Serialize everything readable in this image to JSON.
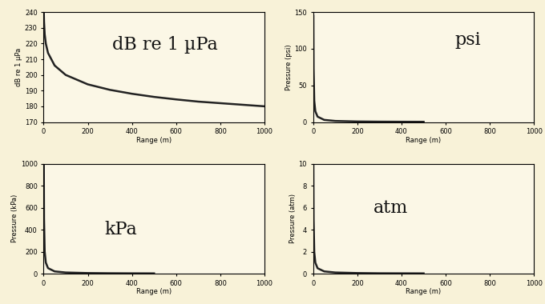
{
  "chart_data": [
    {
      "type": "line",
      "annotation": "dB re 1 µPa",
      "x_label": "Range (m)",
      "y_label": "dB re 1 µPa",
      "x": [
        1,
        2,
        5,
        10,
        20,
        50,
        100,
        200,
        300,
        400,
        500,
        600,
        700,
        800,
        900,
        1000
      ],
      "values": [
        240,
        234,
        226,
        220,
        214,
        206,
        200,
        194,
        190.5,
        188,
        186,
        184.4,
        183,
        182,
        181,
        180
      ],
      "xlim": [
        0,
        1000
      ],
      "ylim": [
        170,
        240
      ],
      "xticks": [
        0,
        200,
        400,
        600,
        800,
        1000
      ],
      "yticks": [
        170,
        180,
        190,
        200,
        210,
        220,
        230,
        240
      ],
      "color": "#222222"
    },
    {
      "type": "line",
      "annotation": "psi",
      "x_label": "Range (m)",
      "y_label": "Pressure (psi)",
      "x": [
        1,
        2,
        5,
        10,
        20,
        50,
        100,
        200,
        300,
        400,
        500
      ],
      "values": [
        145,
        72.5,
        29,
        14.5,
        7.3,
        2.9,
        1.45,
        0.73,
        0.48,
        0.36,
        0.29
      ],
      "xlim": [
        0,
        1000
      ],
      "ylim": [
        0,
        150
      ],
      "xticks": [
        0,
        200,
        400,
        600,
        800,
        1000
      ],
      "yticks": [
        0,
        50,
        100,
        150
      ],
      "color": "#222222"
    },
    {
      "type": "line",
      "annotation": "kPa",
      "x_label": "Range (m)",
      "y_label": "Pressure (kPa)",
      "x": [
        1,
        2,
        5,
        10,
        20,
        50,
        100,
        200,
        300,
        400,
        500
      ],
      "values": [
        1000,
        500,
        200,
        100,
        50,
        20,
        10,
        5,
        3.3,
        2.5,
        2
      ],
      "xlim": [
        0,
        1000
      ],
      "ylim": [
        0,
        1000
      ],
      "xticks": [
        0,
        200,
        400,
        600,
        800,
        1000
      ],
      "yticks": [
        0,
        200,
        400,
        600,
        800,
        1000
      ],
      "color": "#222222"
    },
    {
      "type": "line",
      "annotation": "atm",
      "x_label": "Range (m)",
      "y_label": "Pressure (atm)",
      "x": [
        1,
        2,
        5,
        10,
        20,
        50,
        100,
        200,
        300,
        400,
        500
      ],
      "values": [
        9.87,
        4.93,
        1.97,
        0.99,
        0.49,
        0.2,
        0.1,
        0.05,
        0.03,
        0.025,
        0.02
      ],
      "xlim": [
        0,
        1000
      ],
      "ylim": [
        0,
        10
      ],
      "xticks": [
        0,
        200,
        400,
        600,
        800,
        1000
      ],
      "yticks": [
        0,
        2,
        4,
        6,
        8,
        10
      ],
      "color": "#222222"
    }
  ]
}
